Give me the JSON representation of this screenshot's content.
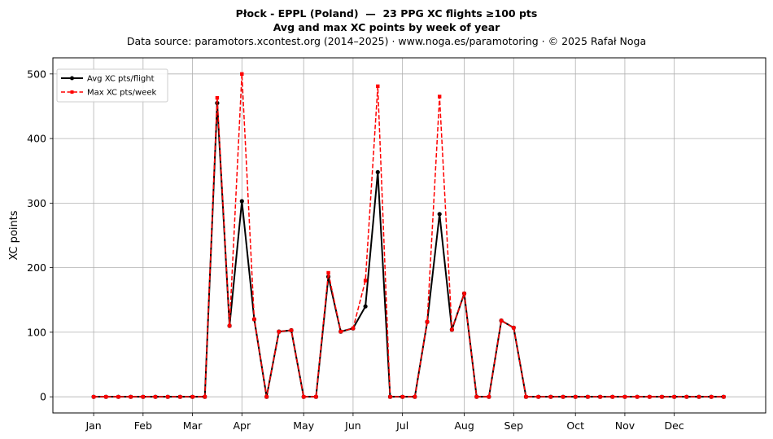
{
  "title_line1": "Płock - EPPL (Poland)  —  23 PPG XC flights ≥100 pts",
  "title_line2": "Avg and max XC points by week of year",
  "title_line3": "Data source: paramotors.xcontest.org (2014–2025)  ·  www.noga.es/paramotoring  ·  © 2025 Rafał Noga",
  "chart_data": {
    "type": "line",
    "xlabel": "",
    "ylabel": "XC points",
    "x_unit": "week of year",
    "xlim": [
      -2.3,
      55.4
    ],
    "ylim": [
      -25,
      525
    ],
    "yticks": [
      0,
      100,
      200,
      300,
      400,
      500
    ],
    "grid": true,
    "legend_position": "top-left",
    "month_ticks": [
      {
        "label": "Jan",
        "week": 1
      },
      {
        "label": "Feb",
        "week": 5
      },
      {
        "label": "Mar",
        "week": 9
      },
      {
        "label": "Apr",
        "week": 13
      },
      {
        "label": "May",
        "week": 18
      },
      {
        "label": "Jun",
        "week": 22
      },
      {
        "label": "Jul",
        "week": 26
      },
      {
        "label": "Aug",
        "week": 31
      },
      {
        "label": "Sep",
        "week": 35
      },
      {
        "label": "Oct",
        "week": 40
      },
      {
        "label": "Nov",
        "week": 44
      },
      {
        "label": "Dec",
        "week": 48
      }
    ],
    "x": [
      1,
      2,
      3,
      4,
      5,
      6,
      7,
      8,
      9,
      10,
      11,
      12,
      13,
      14,
      15,
      16,
      17,
      18,
      19,
      20,
      21,
      22,
      23,
      24,
      25,
      26,
      27,
      28,
      29,
      30,
      31,
      32,
      33,
      34,
      35,
      36,
      37,
      38,
      39,
      40,
      41,
      42,
      43,
      44,
      45,
      46,
      47,
      48,
      49,
      50,
      51,
      52
    ],
    "series": [
      {
        "name": "Avg XC pts/flight",
        "color": "#000000",
        "style": "solid",
        "marker": "circle",
        "values": [
          0,
          0,
          0,
          0,
          0,
          0,
          0,
          0,
          0,
          0,
          455,
          110,
          303,
          120,
          0,
          101,
          103,
          0,
          0,
          186,
          101,
          106,
          140,
          348,
          0,
          0,
          0,
          116,
          283,
          104,
          160,
          0,
          0,
          118,
          107,
          0,
          0,
          0,
          0,
          0,
          0,
          0,
          0,
          0,
          0,
          0,
          0,
          0,
          0,
          0,
          0,
          0
        ]
      },
      {
        "name": "Max XC pts/week",
        "color": "#ff0000",
        "style": "dashed",
        "marker": "square",
        "values": [
          0,
          0,
          0,
          0,
          0,
          0,
          0,
          0,
          0,
          0,
          463,
          110,
          500,
          120,
          0,
          101,
          103,
          0,
          0,
          192,
          101,
          106,
          180,
          481,
          0,
          0,
          0,
          116,
          465,
          104,
          160,
          0,
          0,
          118,
          107,
          0,
          0,
          0,
          0,
          0,
          0,
          0,
          0,
          0,
          0,
          0,
          0,
          0,
          0,
          0,
          0,
          0
        ]
      }
    ]
  }
}
